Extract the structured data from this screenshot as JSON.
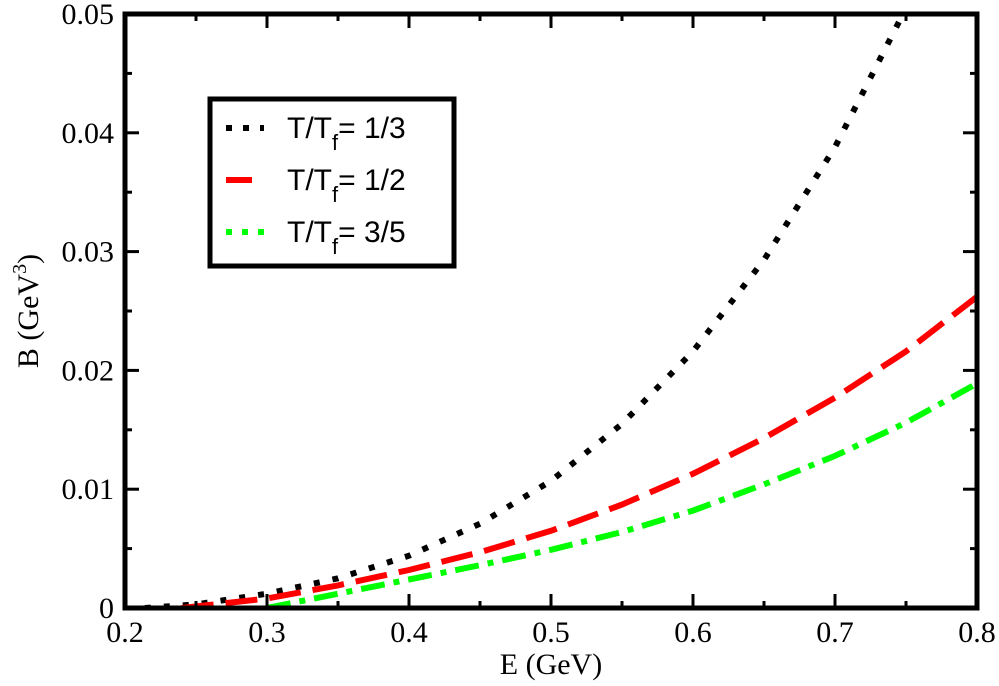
{
  "chart_data": {
    "type": "line",
    "title": "",
    "xlabel": "E (GeV)",
    "ylabel_main": "B (GeV",
    "ylabel_sup": "3",
    "ylabel_close": ")",
    "xlim": [
      0.2,
      0.8
    ],
    "ylim": [
      0,
      0.05
    ],
    "xticks": [
      0.2,
      0.3,
      0.4,
      0.5,
      0.6,
      0.7,
      0.8
    ],
    "xtick_labels": [
      "0.2",
      "0.3",
      "0.4",
      "0.5",
      "0.6",
      "0.7",
      "0.8"
    ],
    "yticks": [
      0,
      0.01,
      0.02,
      0.03,
      0.04,
      0.05
    ],
    "ytick_labels": [
      "0",
      "0.01",
      "0.02",
      "0.03",
      "0.04",
      "0.05"
    ],
    "legend_position": "top-left",
    "series": [
      {
        "name": "T/T_f = 1/3",
        "legend_prefix": "T/T",
        "legend_sub": "f",
        "legend_suffix": "= 1/3",
        "color": "#000000",
        "style": "dotted",
        "x": [
          0.214,
          0.25,
          0.3,
          0.35,
          0.4,
          0.45,
          0.5,
          0.55,
          0.6,
          0.65,
          0.7,
          0.75
        ],
        "y": [
          0.0,
          0.0003,
          0.0012,
          0.0025,
          0.0044,
          0.0071,
          0.0107,
          0.0155,
          0.0216,
          0.0293,
          0.0388,
          0.0505
        ]
      },
      {
        "name": "T/T_f = 1/2",
        "legend_prefix": "T/T",
        "legend_sub": "f",
        "legend_suffix": "= 1/2",
        "color": "#ff0000",
        "style": "dashed",
        "x": [
          0.24,
          0.3,
          0.35,
          0.4,
          0.45,
          0.5,
          0.55,
          0.6,
          0.65,
          0.7,
          0.75,
          0.8
        ],
        "y": [
          0.0,
          0.0008,
          0.0019,
          0.0032,
          0.0047,
          0.0065,
          0.0087,
          0.0113,
          0.0143,
          0.0177,
          0.0216,
          0.0262
        ]
      },
      {
        "name": "T/T_f = 3/5",
        "legend_prefix": "T/T",
        "legend_sub": "f",
        "legend_suffix": "= 3/5",
        "color": "#00ff00",
        "style": "dash-dot",
        "x": [
          0.3,
          0.35,
          0.4,
          0.45,
          0.5,
          0.55,
          0.6,
          0.65,
          0.7,
          0.75,
          0.8
        ],
        "y": [
          0.0,
          0.0012,
          0.0024,
          0.0036,
          0.0049,
          0.0064,
          0.0082,
          0.0104,
          0.0128,
          0.0156,
          0.0189
        ]
      }
    ]
  }
}
